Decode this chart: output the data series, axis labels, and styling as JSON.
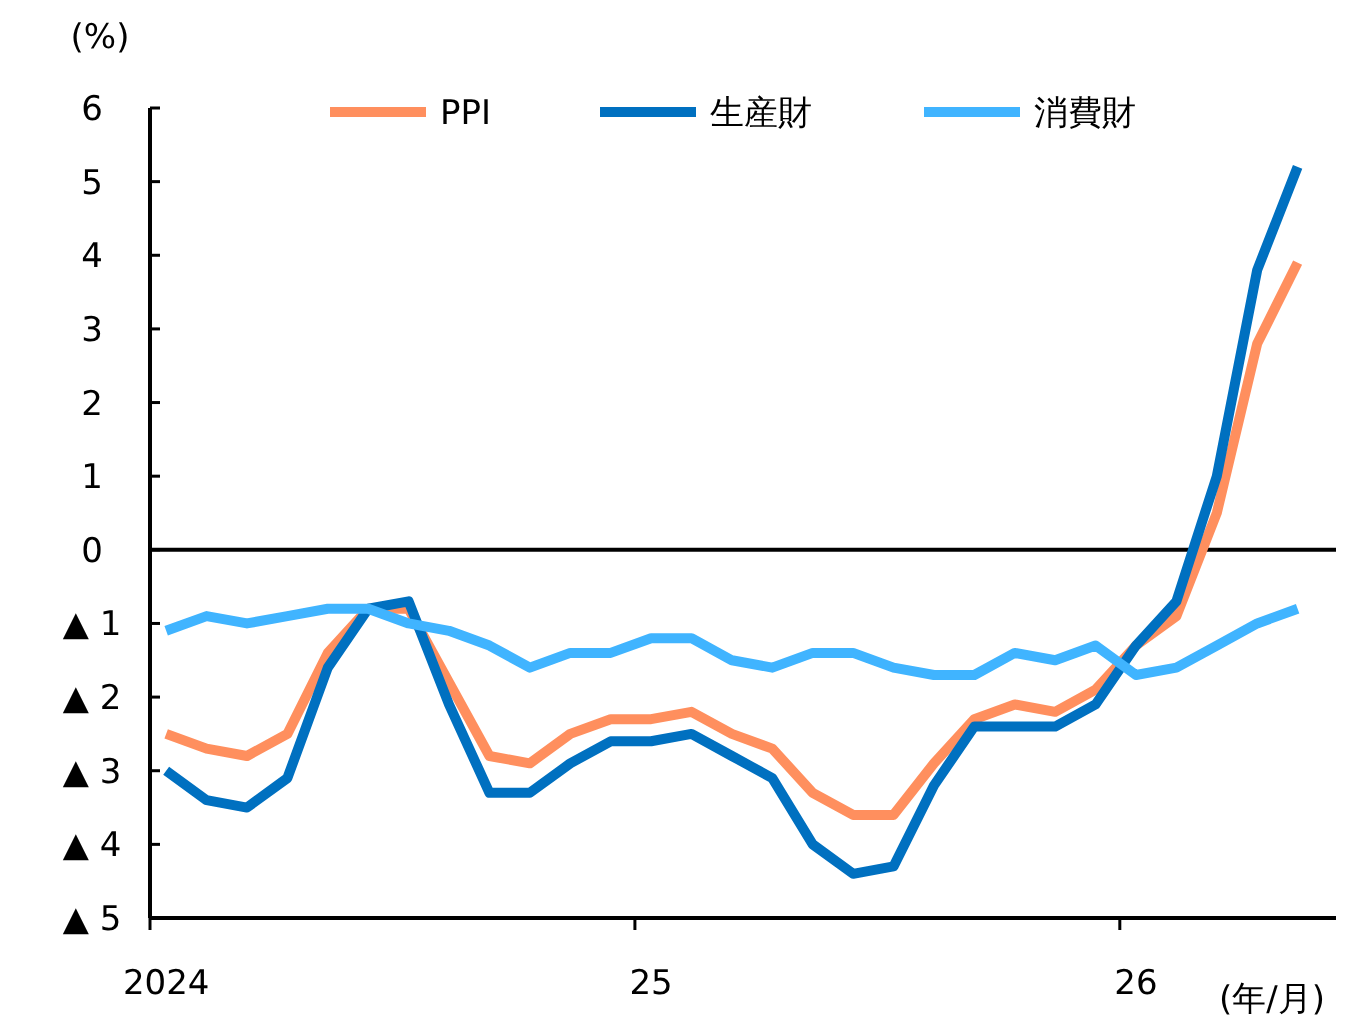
{
  "chart_data": {
    "type": "line",
    "ylabel": "(%)",
    "xlabel": "(年/月)",
    "categories": [
      "2024",
      null,
      null,
      null,
      null,
      null,
      null,
      null,
      null,
      null,
      null,
      null,
      "25",
      null,
      null,
      null,
      null,
      null,
      null,
      null,
      null,
      null,
      null,
      null,
      "26",
      null,
      null,
      null,
      null
    ],
    "series": [
      {
        "name": "PPI",
        "color": "#ff8f5e",
        "values": [
          -2.5,
          -2.7,
          -2.8,
          -2.5,
          -1.4,
          -0.8,
          -0.8,
          -1.8,
          -2.8,
          -2.9,
          -2.5,
          -2.3,
          -2.3,
          -2.2,
          -2.5,
          -2.7,
          -3.3,
          -3.6,
          -3.6,
          -2.9,
          -2.3,
          -2.1,
          -2.2,
          -1.9,
          -1.3,
          -0.9,
          0.5,
          2.8,
          3.9
        ]
      },
      {
        "name": "生産財",
        "color": "#0070c0",
        "values": [
          -3.0,
          -3.4,
          -3.5,
          -3.1,
          -1.6,
          -0.8,
          -0.7,
          -2.1,
          -3.3,
          -3.3,
          -2.9,
          -2.6,
          -2.6,
          -2.5,
          -2.8,
          -3.1,
          -4.0,
          -4.4,
          -4.3,
          -3.2,
          -2.4,
          -2.4,
          -2.4,
          -2.1,
          -1.3,
          -0.7,
          1.0,
          3.8,
          5.2
        ]
      },
      {
        "name": "消費財",
        "color": "#40b4ff",
        "values": [
          -1.1,
          -0.9,
          -1.0,
          -0.9,
          -0.8,
          -0.8,
          -1.0,
          -1.1,
          -1.3,
          -1.6,
          -1.4,
          -1.4,
          -1.2,
          -1.2,
          -1.5,
          -1.6,
          -1.4,
          -1.4,
          -1.6,
          -1.7,
          -1.7,
          -1.4,
          -1.5,
          -1.3,
          -1.7,
          -1.6,
          -1.3,
          -1.0,
          -0.8
        ]
      }
    ],
    "ylim": [
      -5,
      6
    ],
    "yticks": [
      {
        "value": -5,
        "label": "▲ 5"
      },
      {
        "value": -4,
        "label": "▲ 4"
      },
      {
        "value": -3,
        "label": "▲ 3"
      },
      {
        "value": -2,
        "label": "▲ 2"
      },
      {
        "value": -1,
        "label": "▲ 1"
      },
      0,
      1,
      2,
      3,
      4,
      5,
      6
    ],
    "ref_lines": [
      {
        "axis": "y",
        "value": 0,
        "color": "#000000"
      }
    ],
    "legend": "top",
    "grid": false,
    "marker": "none",
    "line_style": "solid"
  }
}
